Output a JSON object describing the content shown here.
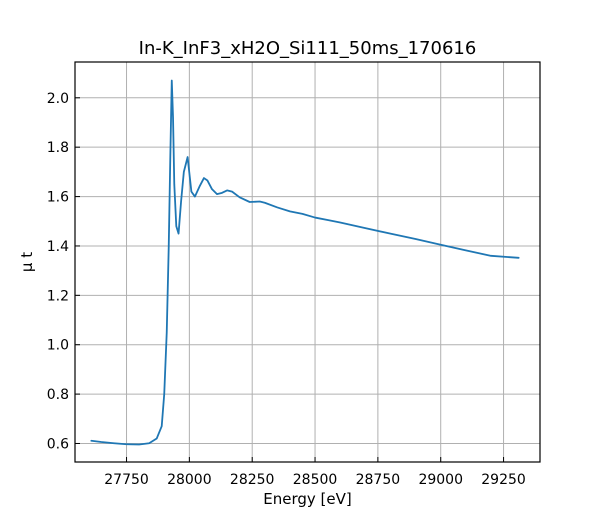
{
  "chart_data": {
    "type": "line",
    "title": "In-K_InF3_xH2O_Si111_50ms_170616",
    "xlabel": "Energy [eV]",
    "ylabel": "μ t",
    "xlim": [
      27545,
      29395
    ],
    "ylim": [
      0.525,
      2.145
    ],
    "grid": true,
    "x_ticks": [
      27750,
      28000,
      28250,
      28500,
      28750,
      29000,
      29250
    ],
    "x_tick_labels": [
      "27750",
      "28000",
      "28250",
      "28500",
      "28750",
      "29000",
      "29250"
    ],
    "y_ticks": [
      0.6,
      0.8,
      1.0,
      1.2,
      1.4,
      1.6,
      1.8,
      2.0
    ],
    "y_tick_labels": [
      "0.6",
      "0.8",
      "1.0",
      "1.2",
      "1.4",
      "1.6",
      "1.8",
      "2.0"
    ],
    "series": [
      {
        "color": "#1f77b4",
        "x": [
          27610,
          27650,
          27700,
          27750,
          27800,
          27840,
          27870,
          27890,
          27900,
          27910,
          27918,
          27924,
          27930,
          27935,
          27940,
          27948,
          27957,
          27967,
          27978,
          27993,
          28008,
          28022,
          28040,
          28058,
          28072,
          28090,
          28110,
          28130,
          28150,
          28170,
          28200,
          28240,
          28280,
          28300,
          28350,
          28400,
          28450,
          28500,
          28550,
          28600,
          28700,
          28800,
          28900,
          29000,
          29100,
          29200,
          29310
        ],
        "y": [
          0.611,
          0.606,
          0.601,
          0.597,
          0.596,
          0.601,
          0.62,
          0.67,
          0.8,
          1.05,
          1.4,
          1.75,
          2.07,
          1.92,
          1.65,
          1.48,
          1.45,
          1.58,
          1.7,
          1.76,
          1.62,
          1.6,
          1.64,
          1.675,
          1.665,
          1.63,
          1.61,
          1.615,
          1.625,
          1.62,
          1.597,
          1.578,
          1.58,
          1.575,
          1.556,
          1.54,
          1.53,
          1.515,
          1.505,
          1.495,
          1.472,
          1.45,
          1.428,
          1.405,
          1.382,
          1.36,
          1.352
        ]
      }
    ]
  }
}
